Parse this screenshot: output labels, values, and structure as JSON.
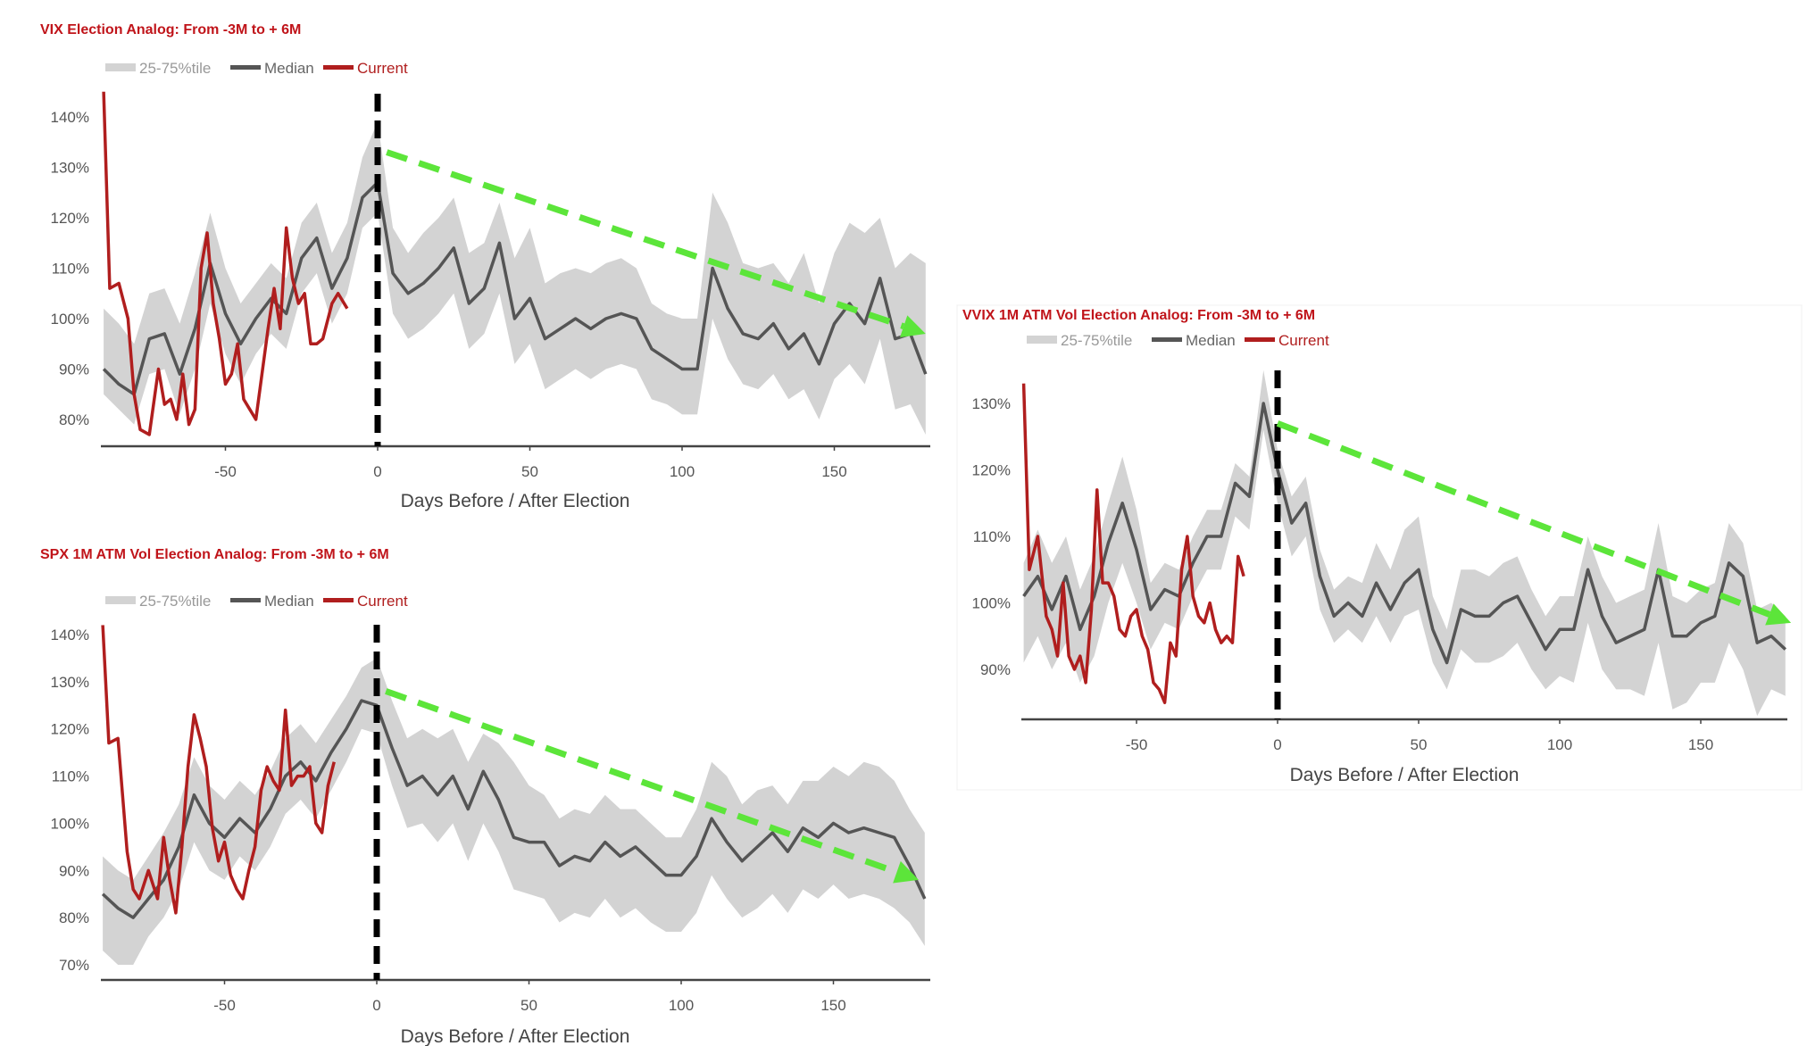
{
  "colors": {
    "band": "#d3d3d3",
    "median": "#555555",
    "current": "#b01e1e",
    "trend": "#5ce53a",
    "election_line": "#000000",
    "title": "#c0141a"
  },
  "chart_data": [
    {
      "id": "vix",
      "type": "line",
      "title": "VIX Election Analog: From -3M to + 6M",
      "xlabel": "Days Before / After Election",
      "ylabel": "",
      "legend": [
        "25-75%tile",
        "Median",
        "Current"
      ],
      "legend_placement": "top-left",
      "xlim": [
        -90,
        180
      ],
      "ylim": [
        75,
        145
      ],
      "xticks": [
        -50,
        0,
        50,
        100,
        150
      ],
      "yticks": [
        80,
        90,
        100,
        110,
        120,
        130,
        140
      ],
      "ytick_labels": [
        "80%",
        "90%",
        "100%",
        "110%",
        "120%",
        "130%",
        "140%"
      ],
      "median_x": [
        -90,
        -85,
        -80,
        -75,
        -70,
        -65,
        -60,
        -55,
        -50,
        -45,
        -40,
        -35,
        -30,
        -25,
        -20,
        -15,
        -10,
        -5,
        0,
        5,
        10,
        15,
        20,
        25,
        30,
        35,
        40,
        45,
        50,
        55,
        60,
        65,
        70,
        75,
        80,
        85,
        90,
        95,
        100,
        105,
        110,
        115,
        120,
        125,
        130,
        135,
        140,
        145,
        150,
        155,
        160,
        165,
        170,
        175,
        180
      ],
      "median": [
        90,
        87,
        85,
        96,
        97,
        89,
        98,
        111,
        101,
        95,
        100,
        104,
        101,
        112,
        116,
        106,
        112,
        124,
        127,
        109,
        105,
        107,
        110,
        114,
        103,
        106,
        115,
        100,
        104,
        96,
        98,
        100,
        98,
        100,
        101,
        100,
        94,
        92,
        90,
        90,
        110,
        102,
        97,
        96,
        99,
        94,
        97,
        91,
        99,
        103,
        99,
        108,
        96,
        97,
        89
      ],
      "band_spread_below": [
        5,
        5,
        6,
        7,
        7,
        8,
        8,
        8,
        8,
        8,
        7,
        7,
        7,
        7,
        7,
        7,
        7,
        6,
        6,
        8,
        9,
        9,
        9,
        9,
        9,
        9,
        10,
        9,
        9,
        10,
        10,
        10,
        10,
        10,
        10,
        10,
        10,
        9,
        9,
        9,
        10,
        10,
        10,
        10,
        10,
        10,
        11,
        11,
        11,
        12,
        12,
        12,
        14,
        14,
        12
      ],
      "band_spread_above": [
        12,
        12,
        10,
        9,
        9,
        10,
        11,
        10,
        9,
        8,
        7,
        7,
        7,
        7,
        7,
        7,
        7,
        8,
        12,
        9,
        8,
        10,
        10,
        10,
        10,
        9,
        8,
        12,
        14,
        11,
        11,
        10,
        11,
        11,
        11,
        10,
        9,
        9,
        10,
        10,
        15,
        17,
        14,
        14,
        12,
        13,
        16,
        12,
        14,
        16,
        18,
        12,
        14,
        16,
        22
      ],
      "current_x": [
        -90,
        -88,
        -85,
        -82,
        -80,
        -78,
        -75,
        -72,
        -70,
        -68,
        -66,
        -64,
        -62,
        -60,
        -58,
        -56,
        -54,
        -52,
        -50,
        -48,
        -46,
        -44,
        -42,
        -40,
        -38,
        -36,
        -34,
        -32,
        -30,
        -28,
        -26,
        -24,
        -22,
        -20,
        -18,
        -15,
        -13,
        -10
      ],
      "current": [
        145,
        106,
        107,
        100,
        85,
        78,
        77,
        90,
        83,
        84,
        80,
        89,
        79,
        82,
        110,
        117,
        103,
        96,
        87,
        89,
        95,
        84,
        82,
        80,
        89,
        98,
        106,
        98,
        118,
        108,
        103,
        105,
        95,
        95,
        96,
        103,
        105,
        102
      ],
      "trend": {
        "from": [
          3,
          133
        ],
        "to": [
          180,
          97
        ]
      },
      "election_day": 0
    },
    {
      "id": "spx",
      "type": "line",
      "title": "SPX 1M ATM Vol Election Analog: From -3M to + 6M",
      "xlabel": "Days Before / After Election",
      "ylabel": "",
      "legend": [
        "25-75%tile",
        "Median",
        "Current"
      ],
      "legend_placement": "top-left",
      "xlim": [
        -90,
        180
      ],
      "ylim": [
        67,
        143
      ],
      "xticks": [
        -50,
        0,
        50,
        100,
        150
      ],
      "yticks": [
        70,
        80,
        90,
        100,
        110,
        120,
        130,
        140
      ],
      "ytick_labels": [
        "70%",
        "80%",
        "90%",
        "100%",
        "110%",
        "120%",
        "130%",
        "140%"
      ],
      "median_x": [
        -90,
        -85,
        -80,
        -75,
        -70,
        -65,
        -60,
        -55,
        -50,
        -45,
        -40,
        -35,
        -30,
        -25,
        -20,
        -15,
        -10,
        -5,
        0,
        5,
        10,
        15,
        20,
        25,
        30,
        35,
        40,
        45,
        50,
        55,
        60,
        65,
        70,
        75,
        80,
        85,
        90,
        95,
        100,
        105,
        110,
        115,
        120,
        125,
        130,
        135,
        140,
        145,
        150,
        155,
        160,
        165,
        170,
        175,
        180
      ],
      "median": [
        85,
        82,
        80,
        84,
        88,
        95,
        106,
        100,
        97,
        101,
        98,
        103,
        110,
        113,
        109,
        115,
        120,
        126,
        125,
        116,
        108,
        110,
        106,
        110,
        103,
        111,
        105,
        97,
        96,
        96,
        91,
        93,
        92,
        96,
        93,
        95,
        92,
        89,
        89,
        93,
        101,
        96,
        92,
        95,
        98,
        94,
        99,
        97,
        100,
        98,
        99,
        98,
        97,
        91,
        84
      ],
      "band_spread_below": [
        12,
        12,
        10,
        8,
        8,
        9,
        10,
        10,
        9,
        8,
        8,
        8,
        8,
        8,
        8,
        8,
        7,
        6,
        6,
        8,
        9,
        10,
        10,
        10,
        11,
        11,
        11,
        11,
        11,
        12,
        12,
        12,
        12,
        12,
        13,
        13,
        13,
        12,
        12,
        12,
        12,
        12,
        12,
        13,
        13,
        13,
        13,
        13,
        13,
        14,
        14,
        14,
        15,
        12,
        10
      ],
      "band_spread_above": [
        8,
        8,
        8,
        9,
        10,
        9,
        8,
        8,
        8,
        8,
        8,
        8,
        8,
        8,
        8,
        7,
        7,
        7,
        10,
        10,
        10,
        10,
        12,
        10,
        10,
        8,
        12,
        16,
        12,
        10,
        10,
        10,
        10,
        10,
        10,
        8,
        8,
        8,
        8,
        10,
        12,
        14,
        12,
        12,
        10,
        10,
        10,
        12,
        12,
        12,
        14,
        14,
        12,
        12,
        14
      ],
      "current_x": [
        -90,
        -88,
        -85,
        -82,
        -80,
        -78,
        -75,
        -72,
        -70,
        -68,
        -66,
        -64,
        -62,
        -60,
        -58,
        -56,
        -54,
        -52,
        -50,
        -48,
        -46,
        -44,
        -42,
        -40,
        -38,
        -36,
        -34,
        -32,
        -30,
        -28,
        -26,
        -24,
        -22,
        -20,
        -18,
        -16,
        -14
      ],
      "current": [
        142,
        117,
        118,
        94,
        86,
        84,
        90,
        84,
        97,
        88,
        81,
        95,
        112,
        123,
        118,
        112,
        99,
        92,
        96,
        89,
        86,
        84,
        90,
        95,
        107,
        112,
        109,
        107,
        124,
        108,
        110,
        110,
        112,
        100,
        98,
        108,
        113
      ],
      "trend": {
        "from": [
          3,
          128
        ],
        "to": [
          178,
          88
        ]
      },
      "election_day": 0
    },
    {
      "id": "vvix",
      "type": "line",
      "title": "VVIX 1M ATM Vol Election Analog: From -3M to + 6M",
      "xlabel": "Days Before / After Election",
      "ylabel": "",
      "legend": [
        "25-75%tile",
        "Median",
        "Current"
      ],
      "legend_placement": "top-left",
      "xlim": [
        -90,
        180
      ],
      "ylim": [
        82,
        135
      ],
      "xticks": [
        -50,
        0,
        50,
        100,
        150
      ],
      "yticks": [
        90,
        100,
        110,
        120,
        130
      ],
      "ytick_labels": [
        "90%",
        "100%",
        "110%",
        "120%",
        "130%"
      ],
      "median_x": [
        -90,
        -85,
        -80,
        -75,
        -70,
        -65,
        -60,
        -55,
        -50,
        -45,
        -40,
        -35,
        -30,
        -25,
        -20,
        -15,
        -10,
        -5,
        0,
        5,
        10,
        15,
        20,
        25,
        30,
        35,
        40,
        45,
        50,
        55,
        60,
        65,
        70,
        75,
        80,
        85,
        90,
        95,
        100,
        105,
        110,
        115,
        120,
        125,
        130,
        135,
        140,
        145,
        150,
        155,
        160,
        165,
        170,
        175,
        180
      ],
      "median": [
        101,
        104,
        99,
        104,
        96,
        101,
        109,
        115,
        108,
        99,
        102,
        101,
        106,
        110,
        110,
        118,
        116,
        130,
        120,
        112,
        115,
        104,
        98,
        100,
        98,
        103,
        99,
        103,
        105,
        96,
        91,
        99,
        98,
        98,
        100,
        101,
        97,
        93,
        96,
        96,
        105,
        98,
        94,
        95,
        96,
        105,
        95,
        95,
        97,
        98,
        106,
        104,
        94,
        95,
        93
      ],
      "band_spread_below": [
        10,
        9,
        9,
        10,
        8,
        9,
        9,
        9,
        8,
        6,
        5,
        5,
        5,
        5,
        5,
        5,
        5,
        4,
        5,
        5,
        5,
        5,
        4,
        4,
        4,
        5,
        5,
        5,
        6,
        5,
        4,
        6,
        7,
        7,
        8,
        7,
        7,
        6,
        7,
        8,
        8,
        8,
        7,
        8,
        10,
        11,
        11,
        10,
        9,
        10,
        12,
        14,
        11,
        8,
        7
      ],
      "band_spread_above": [
        5,
        7,
        7,
        6,
        6,
        6,
        6,
        7,
        6,
        4,
        4,
        4,
        4,
        4,
        4,
        3,
        3,
        5,
        3,
        4,
        4,
        4,
        4,
        4,
        5,
        6,
        6,
        8,
        8,
        5,
        5,
        6,
        7,
        6,
        6,
        6,
        5,
        5,
        5,
        5,
        5,
        6,
        6,
        6,
        6,
        7,
        6,
        5,
        5,
        5,
        6,
        5,
        5,
        5,
        5
      ],
      "current_x": [
        -90,
        -88,
        -85,
        -82,
        -80,
        -78,
        -76,
        -74,
        -72,
        -70,
        -68,
        -66,
        -64,
        -62,
        -60,
        -58,
        -56,
        -54,
        -52,
        -50,
        -48,
        -46,
        -44,
        -42,
        -40,
        -38,
        -36,
        -34,
        -32,
        -30,
        -28,
        -26,
        -24,
        -22,
        -20,
        -18,
        -16,
        -14,
        -12
      ],
      "current": [
        133,
        105,
        110,
        98,
        96,
        92,
        103,
        92,
        90,
        92,
        88,
        99,
        117,
        103,
        103,
        101,
        96,
        95,
        98,
        99,
        95,
        93,
        88,
        87,
        85,
        94,
        92,
        105,
        110,
        101,
        98,
        97,
        100,
        96,
        94,
        95,
        94,
        107,
        104
      ],
      "trend": {
        "from": [
          0,
          127
        ],
        "to": [
          182,
          97
        ]
      },
      "election_day": 0
    }
  ]
}
